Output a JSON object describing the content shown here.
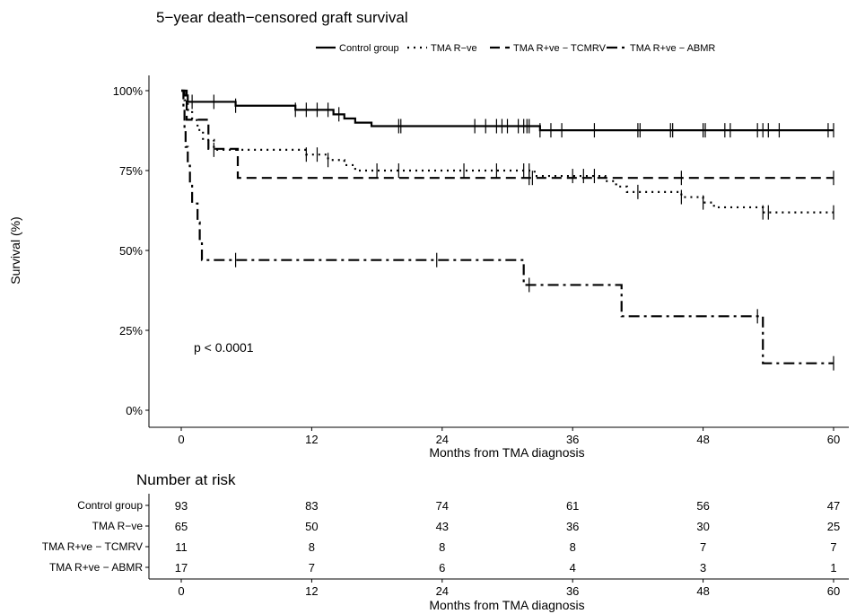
{
  "chart_data": {
    "type": "line",
    "title": "5−year death−censored graft survival",
    "xlabel": "Months from TMA diagnosis",
    "ylabel": "Survival (%)",
    "x_ticks": [
      0,
      12,
      24,
      36,
      48,
      60
    ],
    "y_ticks": [
      0,
      25,
      50,
      75,
      100
    ],
    "y_tick_labels": [
      "0%",
      "25%",
      "50%",
      "75%",
      "100%"
    ],
    "xlim": [
      0,
      60
    ],
    "ylim": [
      0,
      100
    ],
    "grid": false,
    "legend_position": "top",
    "annotation": "p < 0.0001",
    "series": [
      {
        "name": "Control group",
        "dash": "solid",
        "steps": [
          [
            0,
            100
          ],
          [
            0.3,
            98.5
          ],
          [
            0.6,
            96.5
          ],
          [
            5,
            95.3
          ],
          [
            10.5,
            94
          ],
          [
            14,
            92.6
          ],
          [
            15,
            91.3
          ],
          [
            16,
            90
          ],
          [
            17.5,
            88.9
          ],
          [
            33,
            87.6
          ],
          [
            60,
            87.6
          ]
        ],
        "censor": [
          1,
          3,
          5,
          10.5,
          11.5,
          12.5,
          13.5,
          14.5,
          20,
          20.2,
          27,
          28,
          29,
          29.5,
          30,
          31,
          31.5,
          31.8,
          32,
          33,
          34,
          35,
          38,
          42,
          42.2,
          45,
          45.2,
          48,
          48.2,
          50,
          50.5,
          53,
          53.5,
          54,
          55,
          59.5,
          60
        ]
      },
      {
        "name": "TMA R−ve",
        "dash": "dotted",
        "steps": [
          [
            0,
            100
          ],
          [
            0.3,
            97
          ],
          [
            0.6,
            94
          ],
          [
            1,
            90.8
          ],
          [
            1.5,
            87.7
          ],
          [
            2,
            84.6
          ],
          [
            3,
            81.5
          ],
          [
            11.5,
            80
          ],
          [
            13.5,
            78.3
          ],
          [
            15,
            76.7
          ],
          [
            16,
            75
          ],
          [
            32.5,
            73.3
          ],
          [
            39,
            71.7
          ],
          [
            40,
            70
          ],
          [
            41,
            68.3
          ],
          [
            46,
            66.7
          ],
          [
            48,
            65
          ],
          [
            49,
            63.5
          ],
          [
            53.5,
            61.9
          ],
          [
            60,
            61.9
          ]
        ],
        "censor": [
          3,
          11.5,
          12.5,
          13.5,
          18,
          20,
          26,
          29,
          31.5,
          32,
          36,
          37,
          38,
          42,
          46,
          48,
          53.5,
          54,
          60
        ]
      },
      {
        "name": "TMA R+ve − TCMRV",
        "dash": "dashed",
        "steps": [
          [
            0,
            100
          ],
          [
            0.5,
            90.9
          ],
          [
            2.5,
            81.8
          ],
          [
            5.2,
            72.7
          ],
          [
            60,
            72.7
          ]
        ],
        "censor": [
          32,
          32.3,
          46,
          60
        ]
      },
      {
        "name": "TMA R+ve − ABMR",
        "dash": "dashdot",
        "steps": [
          [
            0,
            100
          ],
          [
            0.2,
            94
          ],
          [
            0.3,
            88.2
          ],
          [
            0.4,
            82.4
          ],
          [
            0.6,
            76.5
          ],
          [
            0.8,
            70.6
          ],
          [
            1,
            64.7
          ],
          [
            1.5,
            58.8
          ],
          [
            1.7,
            52.9
          ],
          [
            1.9,
            47
          ],
          [
            31.5,
            39.2
          ],
          [
            40.5,
            29.4
          ],
          [
            53.5,
            14.7
          ],
          [
            60,
            14.7
          ]
        ],
        "censor": [
          5,
          23.5,
          32,
          53,
          60
        ]
      }
    ],
    "risk_table": {
      "title": "Number at risk",
      "xlabel": "Months from TMA diagnosis",
      "times": [
        0,
        12,
        24,
        36,
        48,
        60
      ],
      "rows": [
        {
          "label": "Control group",
          "counts": [
            93,
            83,
            74,
            61,
            56,
            47
          ]
        },
        {
          "label": "TMA R−ve",
          "counts": [
            65,
            50,
            43,
            36,
            30,
            25
          ]
        },
        {
          "label": "TMA R+ve − TCMRV",
          "counts": [
            11,
            8,
            8,
            8,
            7,
            7
          ]
        },
        {
          "label": "TMA R+ve − ABMR",
          "counts": [
            17,
            7,
            6,
            4,
            3,
            1
          ]
        }
      ]
    }
  }
}
